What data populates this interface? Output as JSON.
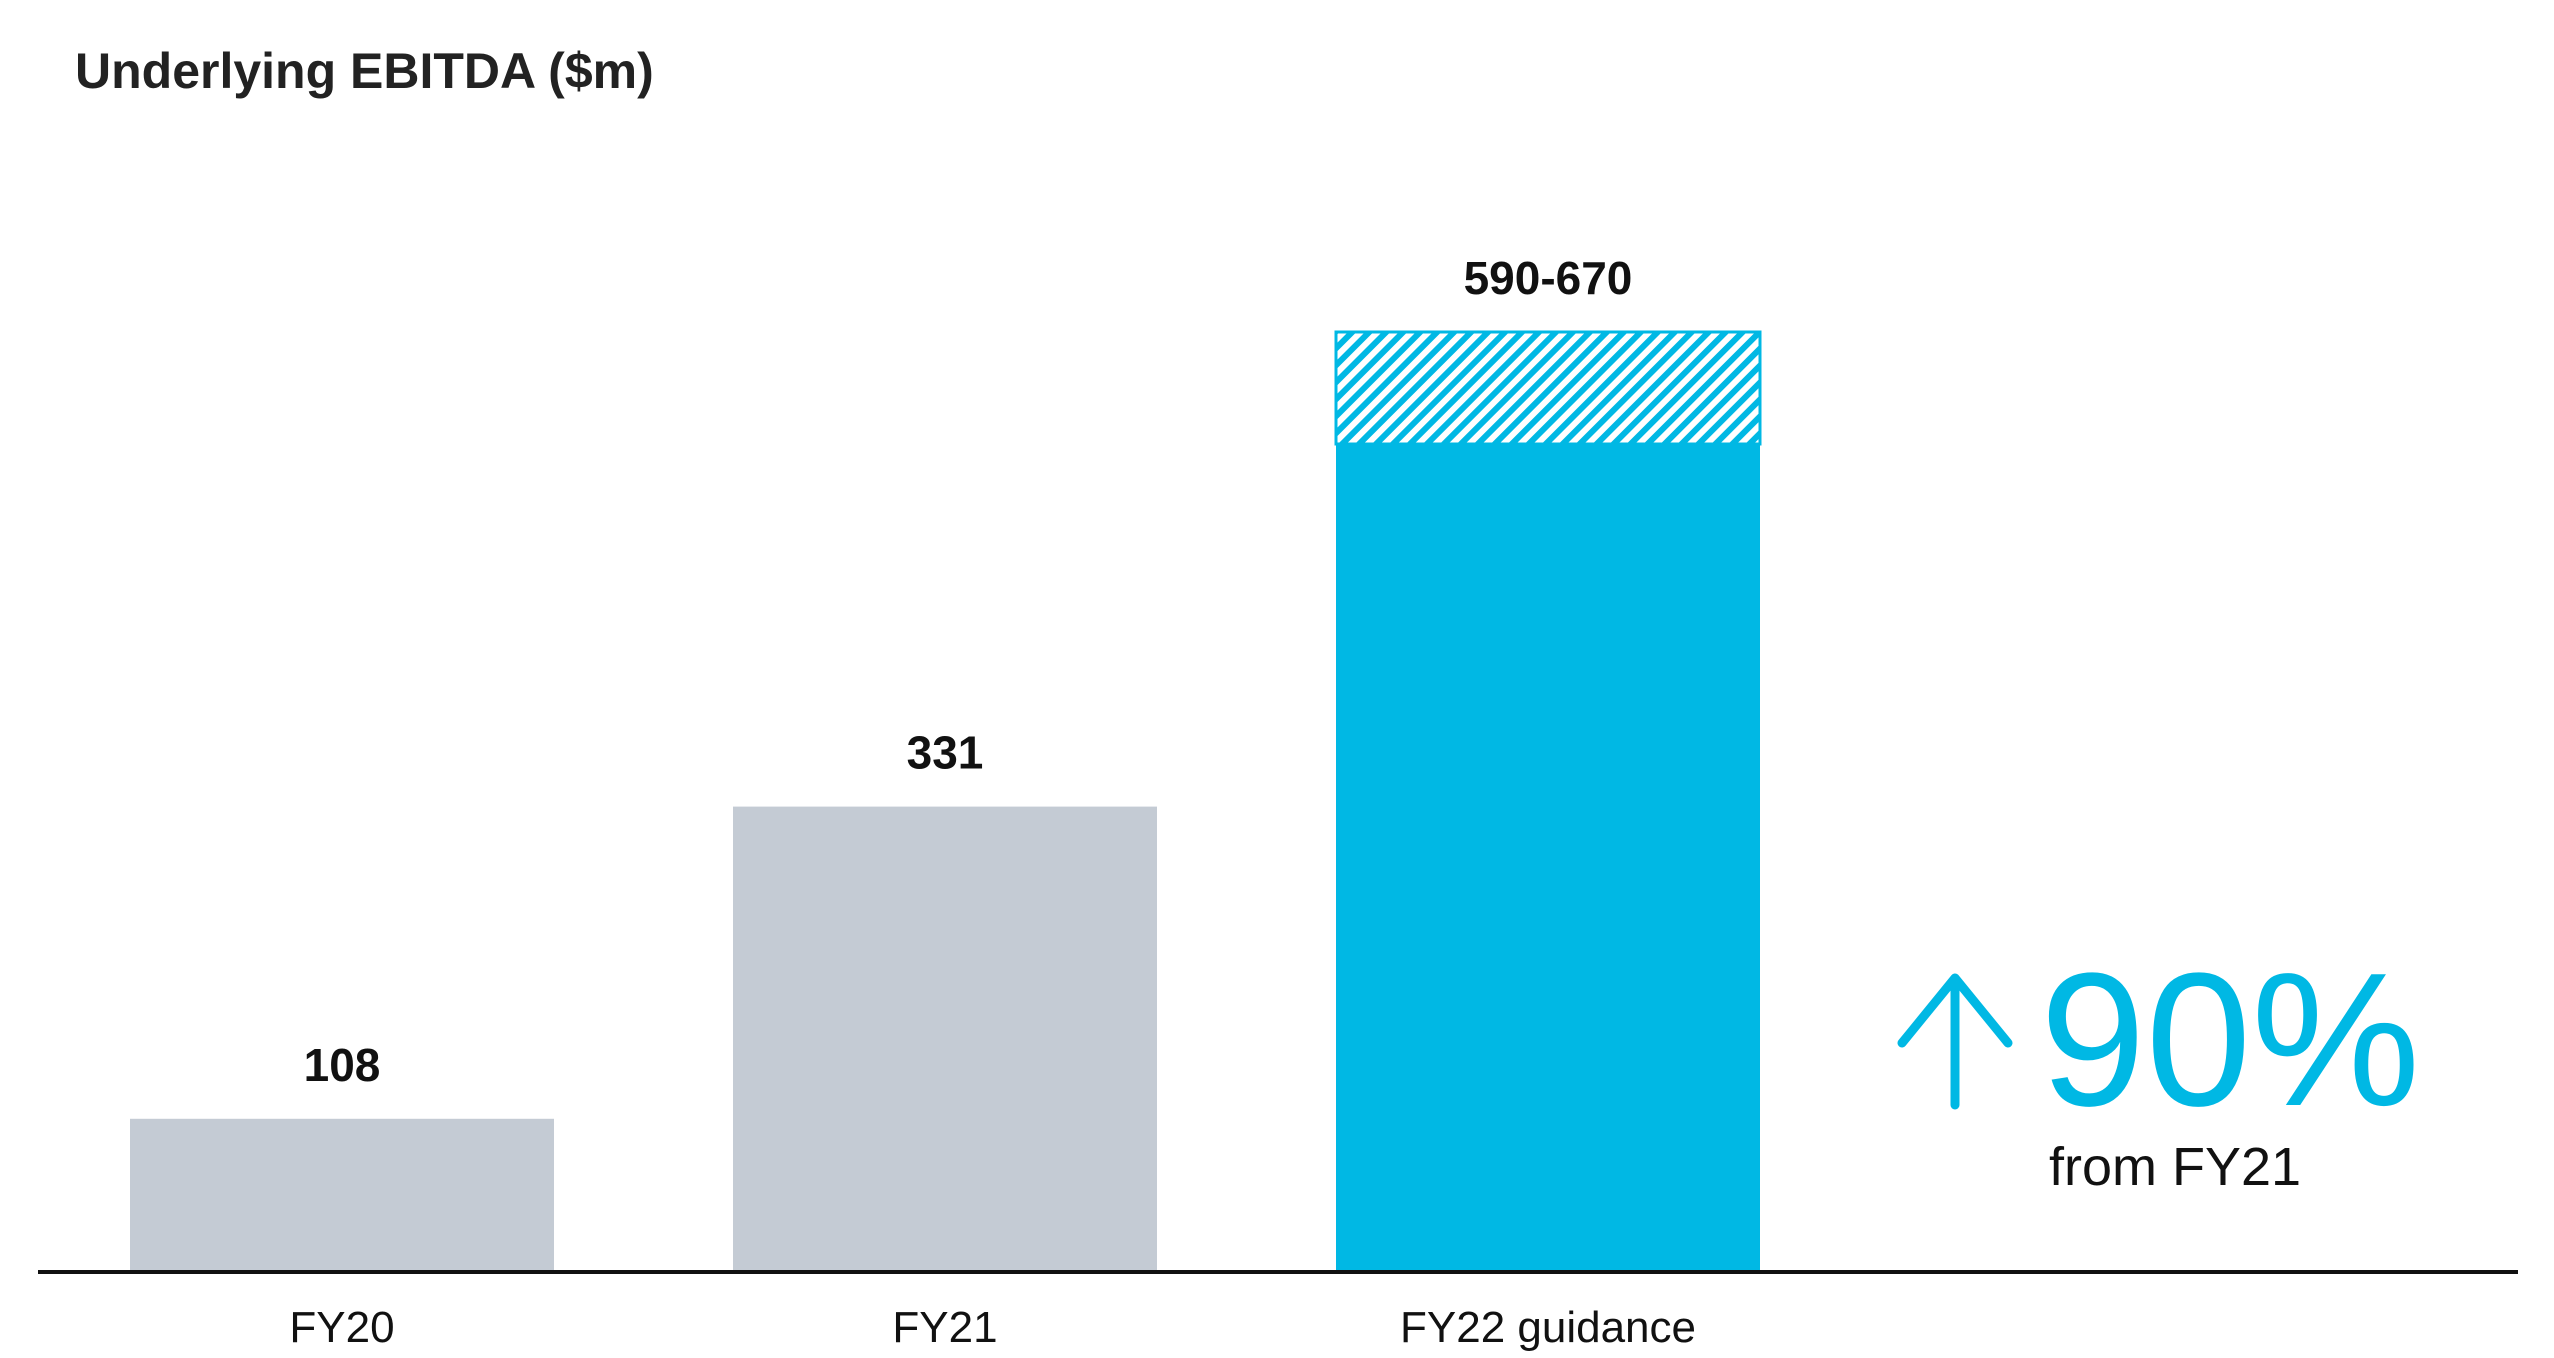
{
  "chart_data": {
    "type": "bar",
    "title": "Underlying EBITDA ($m)",
    "categories": [
      "FY20",
      "FY21",
      "FY22 guidance"
    ],
    "values": [
      108,
      331,
      590
    ],
    "range_upper": [
      null,
      null,
      670
    ],
    "value_labels": [
      "108",
      "331",
      "590-670"
    ],
    "xlabel": "",
    "ylabel": "",
    "ylim": [
      0,
      670
    ],
    "grid": false,
    "legend": "none"
  },
  "callout": {
    "arrow": "up-arrow-icon",
    "value": "90%",
    "text": "from FY21"
  },
  "colors": {
    "historic_bar": "#c4cbd4",
    "guidance_bar": "#00b8e4",
    "axis": "#111111"
  }
}
